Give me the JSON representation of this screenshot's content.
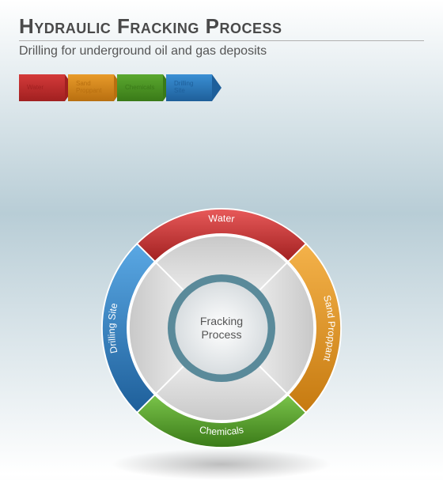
{
  "header": {
    "title": "Hydraulic Fracking Process",
    "subtitle": "Drilling for underground oil and gas deposits"
  },
  "steps": [
    {
      "label": "Water",
      "color": "#d43a3a",
      "dark": "#a12020"
    },
    {
      "label": "Sand\nProppant",
      "color": "#e89b2a",
      "dark": "#b86f10"
    },
    {
      "label": "Chemicals",
      "color": "#5aa82f",
      "dark": "#3a7a18"
    },
    {
      "label": "Drilling\nSite",
      "color": "#3a8fd4",
      "dark": "#1e5f9a"
    }
  ],
  "wheel": {
    "center_line1": "Fracking",
    "center_line2": "Process",
    "outer_radius": 160,
    "ring_width": 34,
    "inner_circle_radius": 62,
    "inner_ring_color": "#5a8a9a",
    "segments": [
      {
        "label": "Water",
        "color_light": "#e85a5a",
        "color_dark": "#a12020",
        "start": -45,
        "end": 45
      },
      {
        "label": "Sand Proppant",
        "color_light": "#f4b24a",
        "color_dark": "#c67a10",
        "start": 45,
        "end": 135
      },
      {
        "label": "Chemicals",
        "color_light": "#7ac44a",
        "color_dark": "#3a7a18",
        "start": 135,
        "end": 225
      },
      {
        "label": "Drilling Site",
        "color_light": "#5aa8e4",
        "color_dark": "#1e5f9a",
        "start": 225,
        "end": 315
      }
    ],
    "inner_wedge_light": "#ffffff",
    "inner_wedge_dark": "#c8c8c8"
  }
}
